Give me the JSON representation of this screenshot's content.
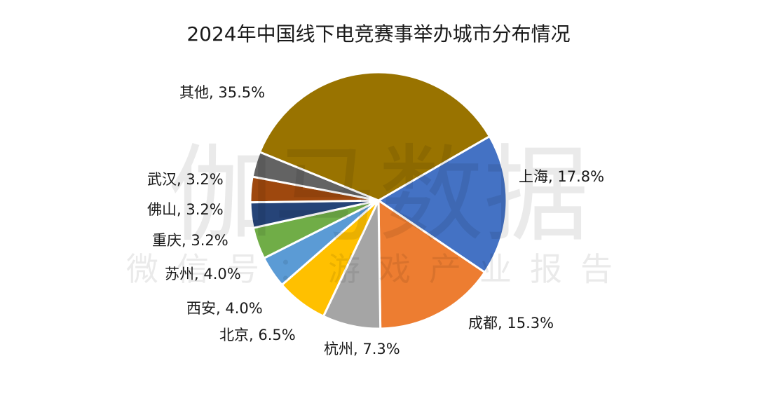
{
  "watermark": {
    "brand": "伽马数据",
    "wechat": "微信号：游戏产业报告"
  },
  "chart_data": {
    "type": "pie",
    "title": "2024年中国线下电竞赛事举办城市分布情况",
    "slices": [
      {
        "name": "上海",
        "value": 17.8,
        "label": "上海, 17.8%",
        "color": "#4472C4"
      },
      {
        "name": "成都",
        "value": 15.3,
        "label": "成都, 15.3%",
        "color": "#ED7D31"
      },
      {
        "name": "杭州",
        "value": 7.3,
        "label": "杭州, 7.3%",
        "color": "#A5A5A5"
      },
      {
        "name": "北京",
        "value": 6.5,
        "label": "北京, 6.5%",
        "color": "#FFC000"
      },
      {
        "name": "西安",
        "value": 4.0,
        "label": "西安, 4.0%",
        "color": "#5B9BD5"
      },
      {
        "name": "苏州",
        "value": 4.0,
        "label": "苏州, 4.0%",
        "color": "#70AD47"
      },
      {
        "name": "重庆",
        "value": 3.2,
        "label": "重庆, 3.2%",
        "color": "#264478"
      },
      {
        "name": "佛山",
        "value": 3.2,
        "label": "佛山, 3.2%",
        "color": "#9E480E"
      },
      {
        "name": "武汉",
        "value": 3.2,
        "label": "武汉, 3.2%",
        "color": "#636363"
      },
      {
        "name": "其他",
        "value": 35.5,
        "label": "其他, 35.5%",
        "color": "#997300"
      }
    ]
  }
}
